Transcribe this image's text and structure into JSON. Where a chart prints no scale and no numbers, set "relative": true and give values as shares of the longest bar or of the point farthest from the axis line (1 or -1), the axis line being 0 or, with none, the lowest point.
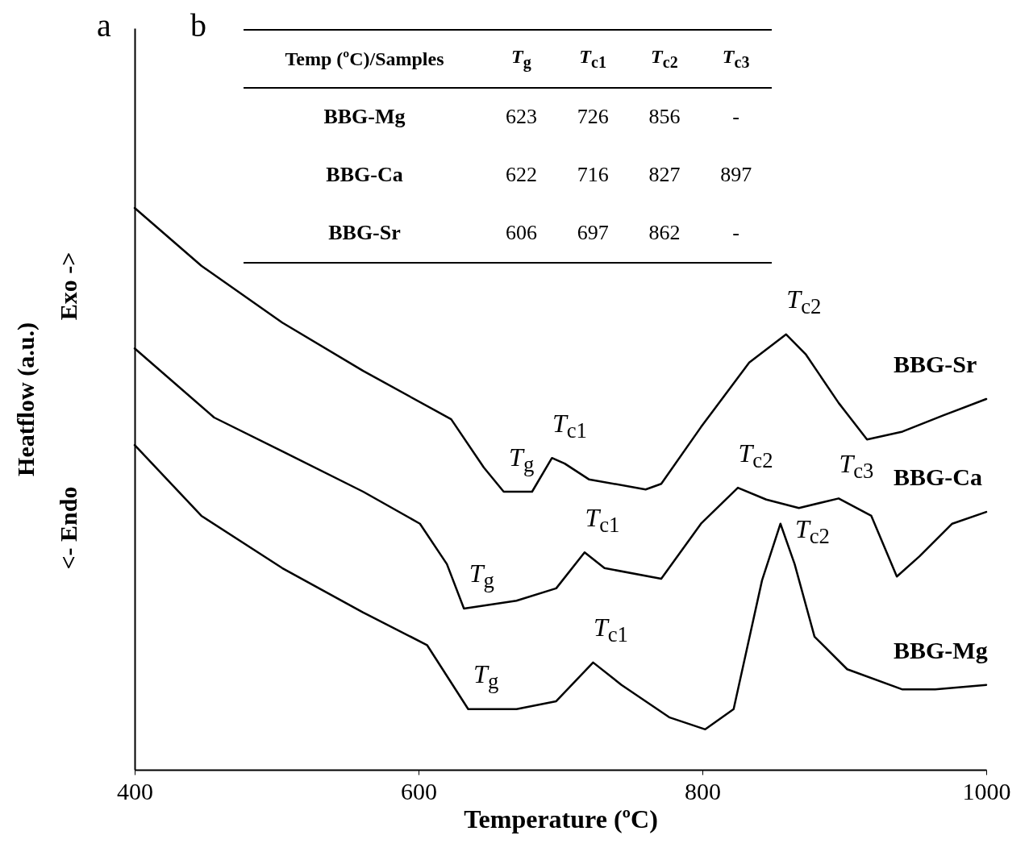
{
  "chart_data": {
    "type": "line",
    "relative": true,
    "xlabel": "Temperature (ºC)",
    "ylabel": "Heatflow (a.u.)",
    "xlim": [
      400,
      1000
    ],
    "xticks": [
      400,
      600,
      800,
      1000
    ],
    "grid": false,
    "legend": false,
    "marker": "none",
    "line_style": "solid",
    "series": [
      {
        "name": "BBG-Sr",
        "color": "#000000",
        "x": [
          400,
          447,
          504,
          561,
          623,
          646,
          660,
          680,
          694,
          703,
          720,
          760,
          771,
          799,
          833,
          859,
          873,
          896,
          916,
          941,
          970,
          1000
        ],
        "values": [
          1.0,
          0.897,
          0.796,
          0.71,
          0.624,
          0.538,
          0.495,
          0.495,
          0.555,
          0.545,
          0.517,
          0.499,
          0.509,
          0.61,
          0.725,
          0.775,
          0.739,
          0.653,
          0.588,
          0.602,
          0.631,
          0.66
        ]
      },
      {
        "name": "BBG-Ca",
        "color": "#000000",
        "x": [
          400,
          456,
          504,
          561,
          601,
          620,
          632,
          669,
          697,
          717,
          731,
          771,
          799,
          825,
          845,
          868,
          896,
          919,
          937,
          953,
          976,
          1000
        ],
        "values": [
          0.75,
          0.627,
          0.567,
          0.495,
          0.438,
          0.366,
          0.287,
          0.301,
          0.323,
          0.387,
          0.359,
          0.34,
          0.438,
          0.502,
          0.481,
          0.466,
          0.483,
          0.452,
          0.344,
          0.38,
          0.438,
          0.459
        ]
      },
      {
        "name": "BBG-Mg",
        "color": "#000000",
        "x": [
          400,
          447,
          504,
          561,
          606,
          635,
          669,
          697,
          723,
          743,
          777,
          802,
          822,
          842,
          855,
          865,
          879,
          902,
          941,
          964,
          1000
        ],
        "values": [
          0.578,
          0.452,
          0.359,
          0.28,
          0.222,
          0.108,
          0.108,
          0.122,
          0.191,
          0.151,
          0.093,
          0.072,
          0.108,
          0.337,
          0.438,
          0.366,
          0.237,
          0.179,
          0.143,
          0.143,
          0.151
        ]
      }
    ],
    "annotations": [
      "a",
      "b",
      "<- Endo",
      "Exo ->",
      "Temp (ºC)/Samples",
      "T$_{g}$",
      "T$_{c1}$",
      "T$_{c2}$",
      "T$_{c3}$",
      "BBG-Mg",
      "623",
      "726",
      "856",
      "-",
      "BBG-Ca",
      "622",
      "716",
      "827",
      "897",
      "BBG-Sr",
      "606",
      "697",
      "862",
      "-",
      {
        "text": "T$_{g}$",
        "x": 660,
        "y": 0.495
      },
      {
        "text": "T$_{c1}$",
        "x": 694,
        "y": 0.555
      },
      {
        "text": "T$_{c2}$",
        "x": 859,
        "y": 0.775
      },
      {
        "text": "T$_{g}$",
        "x": 632,
        "y": 0.287
      },
      {
        "text": "T$_{c1}$",
        "x": 717,
        "y": 0.387
      },
      {
        "text": "T$_{c2}$",
        "x": 825,
        "y": 0.502
      },
      {
        "text": "T$_{c3}$",
        "x": 896,
        "y": 0.483
      },
      {
        "text": "T$_{g}$",
        "x": 635,
        "y": 0.108
      },
      {
        "text": "T$_{c1}$",
        "x": 723,
        "y": 0.191
      },
      {
        "text": "T$_{c2}$",
        "x": 865,
        "y": 0.366
      }
    ]
  }
}
